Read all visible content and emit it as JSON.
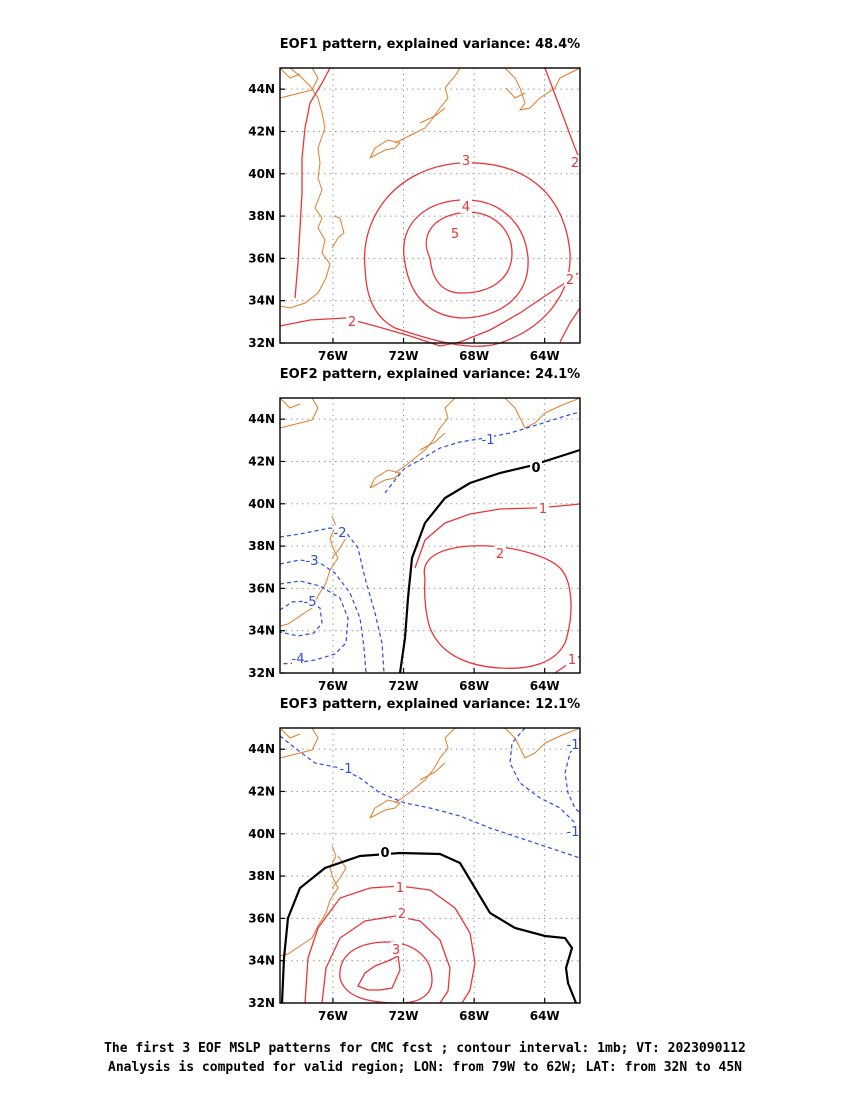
{
  "chart_data": [
    {
      "type": "contour",
      "title": "EOF1 pattern, explained variance: 48.4%",
      "x_ticks": [
        "76W",
        "72W",
        "68W",
        "64W"
      ],
      "y_ticks": [
        "44N",
        "42N",
        "40N",
        "38N",
        "36N",
        "34N",
        "32N"
      ],
      "xlim": [
        -79,
        -62
      ],
      "ylim": [
        32,
        45
      ],
      "grid": true,
      "contour_labels": [
        "3",
        "4",
        "5",
        "2",
        "2",
        "2"
      ],
      "colors": {
        "positive": "#e8373a",
        "negative": "#2a4de6",
        "zero": "#000000",
        "coast": "#e07d2a"
      }
    },
    {
      "type": "contour",
      "title": "EOF2 pattern, explained variance: 24.1%",
      "x_ticks": [
        "76W",
        "72W",
        "68W",
        "64W"
      ],
      "y_ticks": [
        "44N",
        "42N",
        "40N",
        "38N",
        "36N",
        "34N",
        "32N"
      ],
      "xlim": [
        -79,
        -62
      ],
      "ylim": [
        32,
        45
      ],
      "grid": true,
      "contour_labels": [
        "-1",
        "0",
        "1",
        "2",
        "-2",
        "-3",
        "-5",
        "-4",
        "1"
      ],
      "colors": {
        "positive": "#e8373a",
        "negative": "#2a4de6",
        "zero": "#000000",
        "coast": "#e07d2a"
      }
    },
    {
      "type": "contour",
      "title": "EOF3 pattern, explained variance: 12.1%",
      "x_ticks": [
        "76W",
        "72W",
        "68W",
        "64W"
      ],
      "y_ticks": [
        "44N",
        "42N",
        "40N",
        "38N",
        "36N",
        "34N",
        "32N"
      ],
      "xlim": [
        -79,
        -62
      ],
      "ylim": [
        32,
        45
      ],
      "grid": true,
      "contour_labels": [
        "-1",
        "0",
        "1",
        "2",
        "3",
        "-1",
        "-1"
      ],
      "colors": {
        "positive": "#e8373a",
        "negative": "#2a4de6",
        "zero": "#000000",
        "coast": "#e07d2a"
      }
    }
  ],
  "caption": {
    "line1": "The first 3 EOF MSLP patterns for CMC fcst ; contour interval: 1mb; VT: 2023090112",
    "line2": "Analysis is computed for valid region; LON: from 79W to 62W; LAT: from 32N to 45N"
  }
}
